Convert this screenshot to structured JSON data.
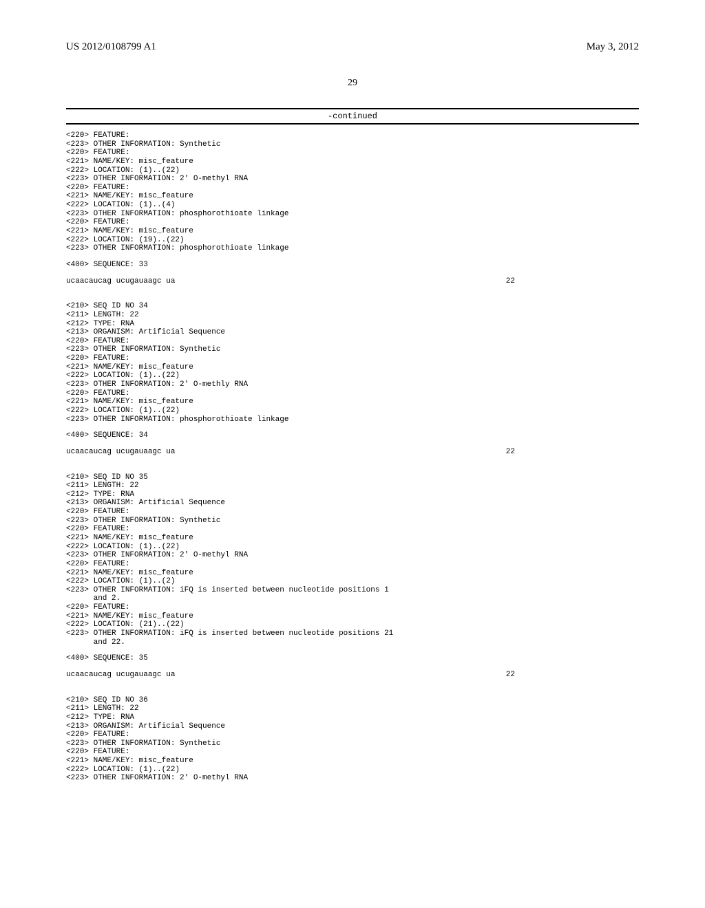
{
  "header": {
    "pub_number": "US 2012/0108799 A1",
    "pub_date": "May 3, 2012"
  },
  "page_number": "29",
  "continued_label": "-continued",
  "seq_33_features": [
    "<220> FEATURE:",
    "<223> OTHER INFORMATION: Synthetic",
    "<220> FEATURE:",
    "<221> NAME/KEY: misc_feature",
    "<222> LOCATION: (1)..(22)",
    "<223> OTHER INFORMATION: 2' O-methyl RNA",
    "<220> FEATURE:",
    "<221> NAME/KEY: misc_feature",
    "<222> LOCATION: (1)..(4)",
    "<223> OTHER INFORMATION: phosphorothioate linkage",
    "<220> FEATURE:",
    "<221> NAME/KEY: misc_feature",
    "<222> LOCATION: (19)..(22)",
    "<223> OTHER INFORMATION: phosphorothioate linkage"
  ],
  "seq_33_seq_label": "<400> SEQUENCE: 33",
  "seq_33_sequence": "ucaacaucag ucugauaagc ua",
  "seq_33_length": "22",
  "seq_34_header": [
    "<210> SEQ ID NO 34",
    "<211> LENGTH: 22",
    "<212> TYPE: RNA",
    "<213> ORGANISM: Artificial Sequence",
    "<220> FEATURE:",
    "<223> OTHER INFORMATION: Synthetic",
    "<220> FEATURE:",
    "<221> NAME/KEY: misc_feature",
    "<222> LOCATION: (1)..(22)",
    "<223> OTHER INFORMATION: 2' O-methly RNA",
    "<220> FEATURE:",
    "<221> NAME/KEY: misc_feature",
    "<222> LOCATION: (1)..(22)",
    "<223> OTHER INFORMATION: phosphorothioate linkage"
  ],
  "seq_34_seq_label": "<400> SEQUENCE: 34",
  "seq_34_sequence": "ucaacaucag ucugauaagc ua",
  "seq_34_length": "22",
  "seq_35_header": [
    "<210> SEQ ID NO 35",
    "<211> LENGTH: 22",
    "<212> TYPE: RNA",
    "<213> ORGANISM: Artificial Sequence",
    "<220> FEATURE:",
    "<223> OTHER INFORMATION: Synthetic",
    "<220> FEATURE:",
    "<221> NAME/KEY: misc_feature",
    "<222> LOCATION: (1)..(22)",
    "<223> OTHER INFORMATION: 2' O-methyl RNA",
    "<220> FEATURE:",
    "<221> NAME/KEY: misc_feature",
    "<222> LOCATION: (1)..(2)",
    "<223> OTHER INFORMATION: iFQ is inserted between nucleotide positions 1",
    "      and 2.",
    "<220> FEATURE:",
    "<221> NAME/KEY: misc_feature",
    "<222> LOCATION: (21)..(22)",
    "<223> OTHER INFORMATION: iFQ is inserted between nucleotide positions 21",
    "      and 22."
  ],
  "seq_35_seq_label": "<400> SEQUENCE: 35",
  "seq_35_sequence": "ucaacaucag ucugauaagc ua",
  "seq_35_length": "22",
  "seq_36_header": [
    "<210> SEQ ID NO 36",
    "<211> LENGTH: 22",
    "<212> TYPE: RNA",
    "<213> ORGANISM: Artificial Sequence",
    "<220> FEATURE:",
    "<223> OTHER INFORMATION: Synthetic",
    "<220> FEATURE:",
    "<221> NAME/KEY: misc_feature",
    "<222> LOCATION: (1)..(22)",
    "<223> OTHER INFORMATION: 2' O-methyl RNA"
  ]
}
